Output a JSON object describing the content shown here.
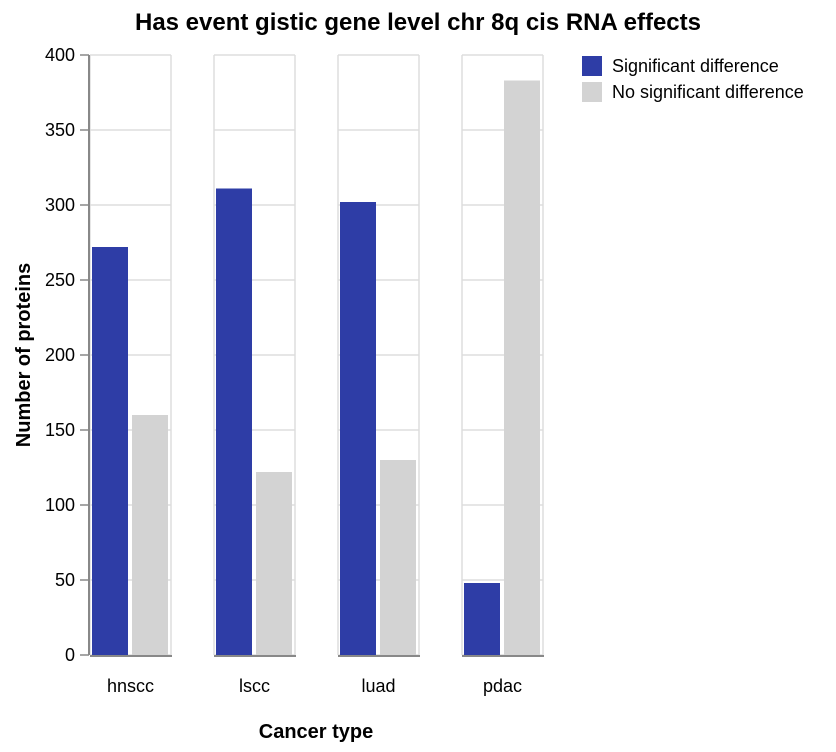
{
  "chart_data": {
    "type": "bar",
    "title": "Has event gistic gene level chr 8q cis RNA effects",
    "xlabel": "Cancer type",
    "ylabel": "Number of proteins",
    "ylim": [
      0,
      400
    ],
    "yticks": [
      0,
      50,
      100,
      150,
      200,
      250,
      300,
      350,
      400
    ],
    "categories": [
      "hnscc",
      "lscc",
      "luad",
      "pdac"
    ],
    "series": [
      {
        "name": "Significant difference",
        "color": "#2e3da6",
        "values": [
          272,
          311,
          302,
          48
        ]
      },
      {
        "name": "No significant difference",
        "color": "#d3d3d3",
        "values": [
          160,
          122,
          130,
          383
        ]
      }
    ],
    "grid": true,
    "legend_position": "top-right"
  }
}
